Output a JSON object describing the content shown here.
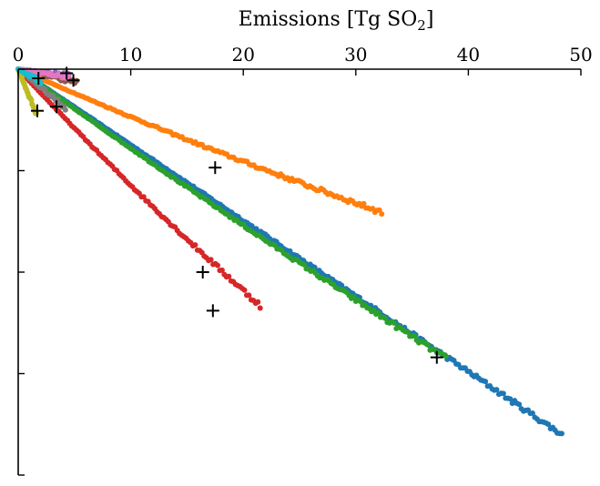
{
  "chart_data": {
    "type": "scatter",
    "title": "",
    "xlabel": "Emissions [Tg SO",
    "xlabel_subscript": "2",
    "xlabel_suffix": "]",
    "ylabel": "",
    "xlim": [
      0,
      50
    ],
    "ylim": [
      0,
      -4.5
    ],
    "x_axis_position": "top",
    "grid": false,
    "legend": "none",
    "xticks": [
      0,
      10,
      20,
      30,
      40,
      50
    ],
    "xtick_labels": [
      "0",
      "10",
      "20",
      "30",
      "40",
      "50"
    ],
    "yticks": [
      0,
      -1,
      -2,
      -3,
      -4
    ],
    "ytick_labels": [
      "",
      "",
      "",
      "",
      ""
    ],
    "series": [
      {
        "color": "#1f77b4",
        "start": [
          0,
          0
        ],
        "end": [
          48.3,
          -3.6
        ],
        "bend": 0.0
      },
      {
        "color": "#ff7f0e",
        "start": [
          0,
          0
        ],
        "end": [
          32.3,
          -1.41
        ],
        "bend": -0.04
      },
      {
        "color": "#2ca02c",
        "start": [
          0,
          0
        ],
        "end": [
          38.0,
          -2.85
        ],
        "bend": -0.04
      },
      {
        "color": "#d62728",
        "start": [
          0,
          0
        ],
        "end": [
          21.5,
          -2.33
        ],
        "bend": -0.06
      },
      {
        "color": "#9467bd",
        "start": [
          0,
          0
        ],
        "end": [
          4.5,
          -0.06
        ],
        "bend": 0.0
      },
      {
        "color": "#8c564b",
        "start": [
          0,
          0
        ],
        "end": [
          5.2,
          -0.13
        ],
        "bend": 0.0
      },
      {
        "color": "#e377c2",
        "start": [
          0,
          0
        ],
        "end": [
          4.5,
          -0.08
        ],
        "bend": 0.0
      },
      {
        "color": "#7f7f7f",
        "start": [
          0,
          0
        ],
        "end": [
          4.2,
          -0.38
        ],
        "bend": 0.0
      },
      {
        "color": "#bcbd22",
        "start": [
          0,
          0
        ],
        "end": [
          1.6,
          -0.44
        ],
        "bend": 0.0
      },
      {
        "color": "#17becf",
        "start": [
          0,
          0
        ],
        "end": [
          2.0,
          -0.12
        ],
        "bend": 0.0
      }
    ],
    "markers": [
      {
        "x": 37.2,
        "y": -2.84
      },
      {
        "x": 17.5,
        "y": -0.97
      },
      {
        "x": 16.4,
        "y": -2.0
      },
      {
        "x": 17.3,
        "y": -2.38
      },
      {
        "x": 3.4,
        "y": -0.37
      },
      {
        "x": 1.7,
        "y": -0.41
      },
      {
        "x": 1.8,
        "y": -0.09
      },
      {
        "x": 4.9,
        "y": -0.11
      },
      {
        "x": 4.3,
        "y": -0.04
      }
    ]
  }
}
